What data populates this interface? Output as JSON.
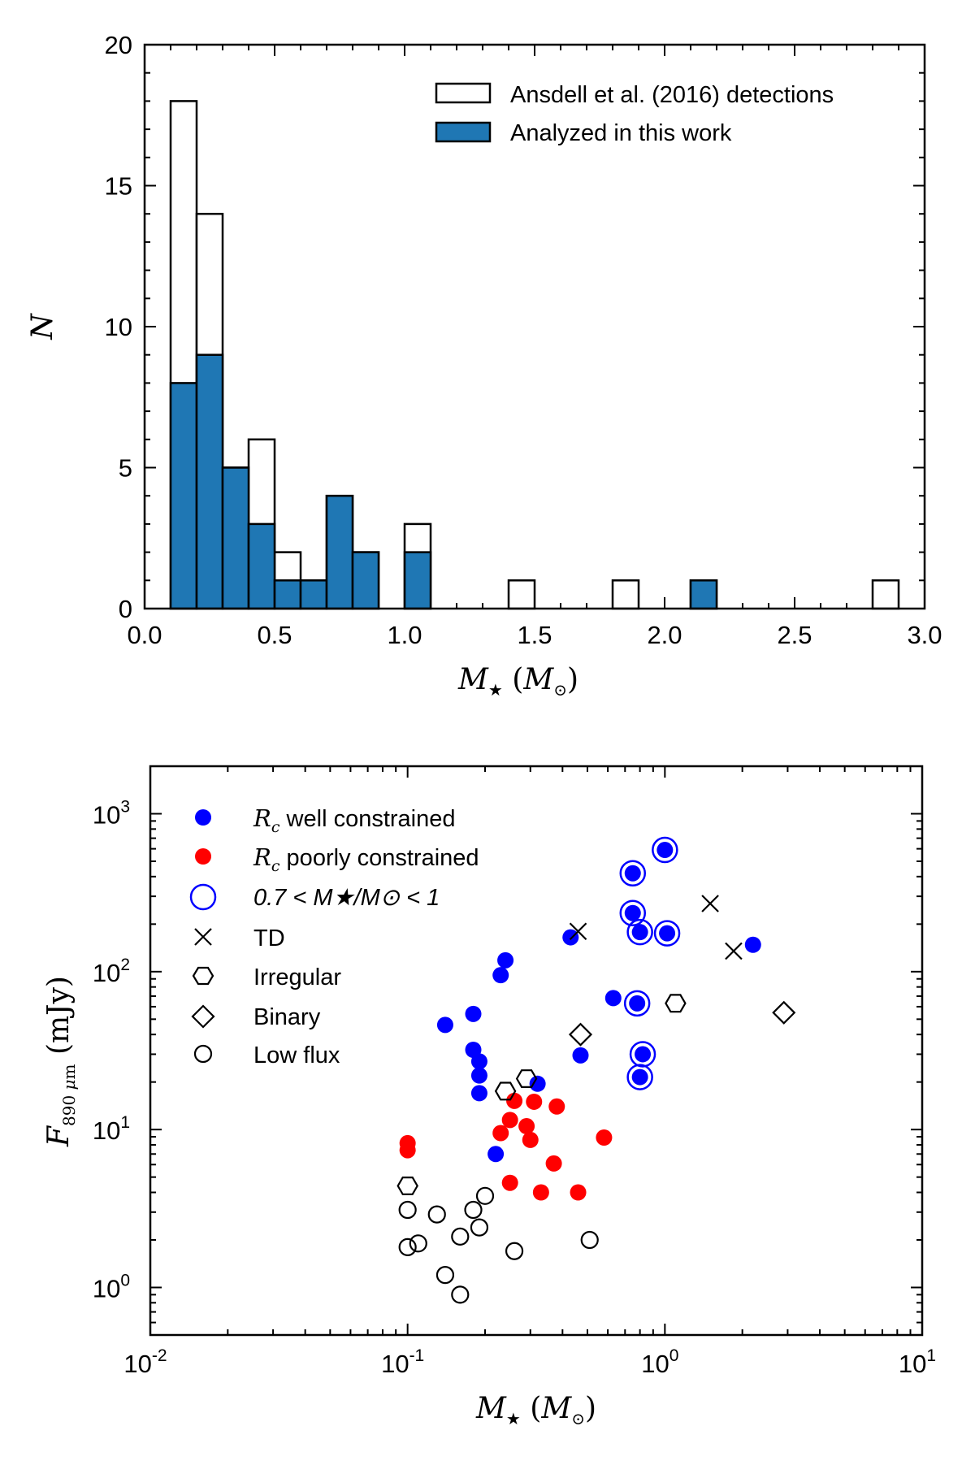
{
  "chart_data": [
    {
      "type": "bar",
      "subtype": "step-histogram",
      "title": "",
      "xlabel": "M★ (M⊙)",
      "ylabel": "N",
      "xlim": [
        0.0,
        3.0
      ],
      "ylim": [
        0,
        20
      ],
      "bin_width": 0.1,
      "bin_starts": [
        0.1,
        0.2,
        0.3,
        0.4,
        0.5,
        0.6,
        0.7,
        0.8,
        0.9,
        1.0,
        1.1,
        1.2,
        1.3,
        1.4,
        1.5,
        1.6,
        1.7,
        1.8,
        1.9,
        2.0,
        2.1,
        2.2,
        2.3,
        2.4,
        2.5,
        2.6,
        2.7,
        2.8
      ],
      "x_ticks": [
        "0.0",
        "0.5",
        "1.0",
        "1.5",
        "2.0",
        "2.5",
        "3.0"
      ],
      "y_ticks": [
        "0",
        "5",
        "10",
        "15",
        "20"
      ],
      "legend_position": "top-right",
      "series": [
        {
          "name": "Ansdell et al. (2016) detections",
          "color": "#ffffff",
          "values": [
            18,
            14,
            5,
            6,
            2,
            1,
            4,
            2,
            0,
            3,
            0,
            0,
            0,
            1,
            0,
            0,
            0,
            1,
            0,
            0,
            1,
            0,
            0,
            0,
            0,
            0,
            0,
            1
          ]
        },
        {
          "name": "Analyzed in this work",
          "color": "#1f77b4",
          "values": [
            8,
            9,
            5,
            3,
            1,
            1,
            4,
            2,
            0,
            2,
            0,
            0,
            0,
            0,
            0,
            0,
            0,
            0,
            0,
            0,
            1,
            0,
            0,
            0,
            0,
            0,
            0,
            0
          ]
        }
      ]
    },
    {
      "type": "scatter",
      "title": "",
      "xlabel": "M★ (M⊙)",
      "ylabel": "F890 μm (mJy)",
      "x_scale": "log",
      "y_scale": "log",
      "xlim": [
        0.01,
        10
      ],
      "ylim": [
        0.5,
        2000
      ],
      "x_ticks": [
        {
          "base": "10",
          "exp": "-2"
        },
        {
          "base": "10",
          "exp": "-1"
        },
        {
          "base": "10",
          "exp": "0"
        },
        {
          "base": "10",
          "exp": "1"
        }
      ],
      "y_ticks": [
        {
          "base": "10",
          "exp": "0"
        },
        {
          "base": "10",
          "exp": "1"
        },
        {
          "base": "10",
          "exp": "2"
        },
        {
          "base": "10",
          "exp": "3"
        }
      ],
      "legend_position": "top-left",
      "legend": [
        {
          "label": "R",
          "label_sub": "c",
          "label_rest": " well constrained",
          "marker": "dot-blue"
        },
        {
          "label": "R",
          "label_sub": "c",
          "label_rest": " poorly constrained",
          "marker": "dot-red"
        },
        {
          "label": "0.7 < M★/M⊙ < 1",
          "marker": "ring-blue"
        },
        {
          "label": "TD",
          "marker": "cross"
        },
        {
          "label": "Irregular",
          "marker": "hexagon"
        },
        {
          "label": "Binary",
          "marker": "diamond"
        },
        {
          "label": "Low flux",
          "marker": "circle-open"
        }
      ],
      "colors": {
        "well": "#0000ff",
        "poor": "#ff0000",
        "open": "#000000"
      },
      "series": [
        {
          "name": "Rc well constrained",
          "marker": "dot-blue",
          "points": [
            [
              0.14,
              46
            ],
            [
              0.18,
              54
            ],
            [
              0.18,
              32
            ],
            [
              0.19,
              27
            ],
            [
              0.19,
              22
            ],
            [
              0.19,
              17
            ],
            [
              0.22,
              7
            ],
            [
              0.23,
              95
            ],
            [
              0.24,
              118
            ],
            [
              0.32,
              19.5
            ],
            [
              0.43,
              165
            ],
            [
              0.47,
              29.5
            ],
            [
              0.63,
              68
            ],
            [
              0.75,
              420
            ],
            [
              0.75,
              235
            ],
            [
              0.78,
              63
            ],
            [
              0.8,
              178
            ],
            [
              0.8,
              21.5
            ],
            [
              0.82,
              30
            ],
            [
              1.0,
              590
            ],
            [
              1.02,
              175
            ],
            [
              2.2,
              148
            ]
          ]
        },
        {
          "name": "Rc poorly constrained",
          "marker": "dot-red",
          "points": [
            [
              0.1,
              8.2
            ],
            [
              0.1,
              7.4
            ],
            [
              0.23,
              9.5
            ],
            [
              0.25,
              11.5
            ],
            [
              0.25,
              4.6
            ],
            [
              0.26,
              15.2
            ],
            [
              0.29,
              10.5
            ],
            [
              0.3,
              8.6
            ],
            [
              0.31,
              15
            ],
            [
              0.33,
              4.0
            ],
            [
              0.37,
              6.1
            ],
            [
              0.38,
              14
            ],
            [
              0.46,
              4.0
            ],
            [
              0.58,
              8.9
            ]
          ]
        },
        {
          "name": "0.7 < M★/M⊙ < 1",
          "marker": "ring-blue",
          "points": [
            [
              0.75,
              420
            ],
            [
              0.75,
              235
            ],
            [
              0.78,
              63
            ],
            [
              0.8,
              178
            ],
            [
              0.8,
              21.5
            ],
            [
              0.82,
              30
            ],
            [
              1.0,
              590
            ],
            [
              1.02,
              175
            ]
          ]
        },
        {
          "name": "TD",
          "marker": "cross",
          "points": [
            [
              0.46,
              180
            ],
            [
              1.5,
              270
            ],
            [
              1.85,
              135
            ]
          ]
        },
        {
          "name": "Irregular",
          "marker": "hexagon",
          "points": [
            [
              0.1,
              4.4
            ],
            [
              0.24,
              17.5
            ],
            [
              0.29,
              21
            ],
            [
              1.1,
              63
            ]
          ]
        },
        {
          "name": "Binary",
          "marker": "diamond",
          "points": [
            [
              0.47,
              40
            ],
            [
              2.9,
              55
            ]
          ]
        },
        {
          "name": "Low flux",
          "marker": "circle-open",
          "points": [
            [
              0.1,
              3.1
            ],
            [
              0.1,
              1.8
            ],
            [
              0.11,
              1.9
            ],
            [
              0.13,
              2.9
            ],
            [
              0.14,
              1.2
            ],
            [
              0.16,
              2.1
            ],
            [
              0.16,
              0.9
            ],
            [
              0.18,
              3.1
            ],
            [
              0.19,
              2.4
            ],
            [
              0.2,
              3.8
            ],
            [
              0.26,
              1.7
            ],
            [
              0.51,
              2.0
            ]
          ]
        }
      ]
    }
  ]
}
